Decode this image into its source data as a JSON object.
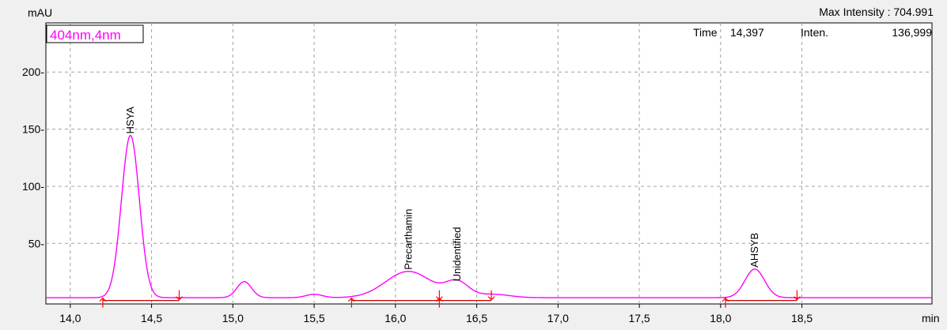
{
  "header": {
    "y_unit": "mAU",
    "max_intensity": "Max Intensity : 704.991",
    "time_label": "Time",
    "time_value": "14,397",
    "inten_label": "Inten.",
    "inten_value": "136,999"
  },
  "chart_data": {
    "type": "line",
    "channel_label": "404nm,4nm",
    "xlabel": "min",
    "ylabel": "mAU",
    "xlim": [
      13.85,
      19.3
    ],
    "ylim": [
      -3,
      243
    ],
    "x_ticks": [
      14.0,
      14.5,
      15.0,
      15.5,
      16.0,
      16.5,
      17.0,
      17.5,
      18.0,
      18.5
    ],
    "x_tick_labels": [
      "14,0",
      "14,5",
      "15,0",
      "15,5",
      "16,0",
      "16,5",
      "17,0",
      "17,5",
      "18,0",
      "18,5"
    ],
    "y_ticks": [
      50,
      100,
      150,
      200
    ],
    "y_tick_labels": [
      "50-",
      "100-",
      "150-",
      "200-"
    ],
    "grid": true,
    "colors": {
      "signal": "#ff00ff",
      "baseline": "#c00000",
      "markers": "#ff0000",
      "grid": "#a0a0a0"
    },
    "signal_baseline": 2.5,
    "peaks": [
      {
        "name": "HSYA",
        "rt": 14.37,
        "height": 142,
        "width": 0.055,
        "labeled": true
      },
      {
        "name": "",
        "rt": 15.07,
        "height": 14,
        "width": 0.045,
        "labeled": false
      },
      {
        "name": "",
        "rt": 15.5,
        "height": 3,
        "width": 0.05,
        "labeled": false
      },
      {
        "name": "Precarthamin",
        "rt": 16.08,
        "height": 23,
        "width": 0.14,
        "labeled": true
      },
      {
        "name": "Unidentified",
        "rt": 16.38,
        "height": 13,
        "width": 0.07,
        "labeled": true
      },
      {
        "name": "",
        "rt": 16.6,
        "height": 3,
        "width": 0.1,
        "labeled": false
      },
      {
        "name": "AHSYB",
        "rt": 18.21,
        "height": 25,
        "width": 0.06,
        "labeled": true
      }
    ],
    "integration_markers": {
      "start": [
        14.2,
        15.73,
        16.27,
        18.03
      ],
      "end": [
        14.67,
        16.27,
        16.59,
        18.47
      ]
    },
    "baseline_segments": [
      [
        14.2,
        14.67
      ],
      [
        15.73,
        16.27
      ],
      [
        16.27,
        16.59
      ],
      [
        18.03,
        18.47
      ]
    ]
  }
}
